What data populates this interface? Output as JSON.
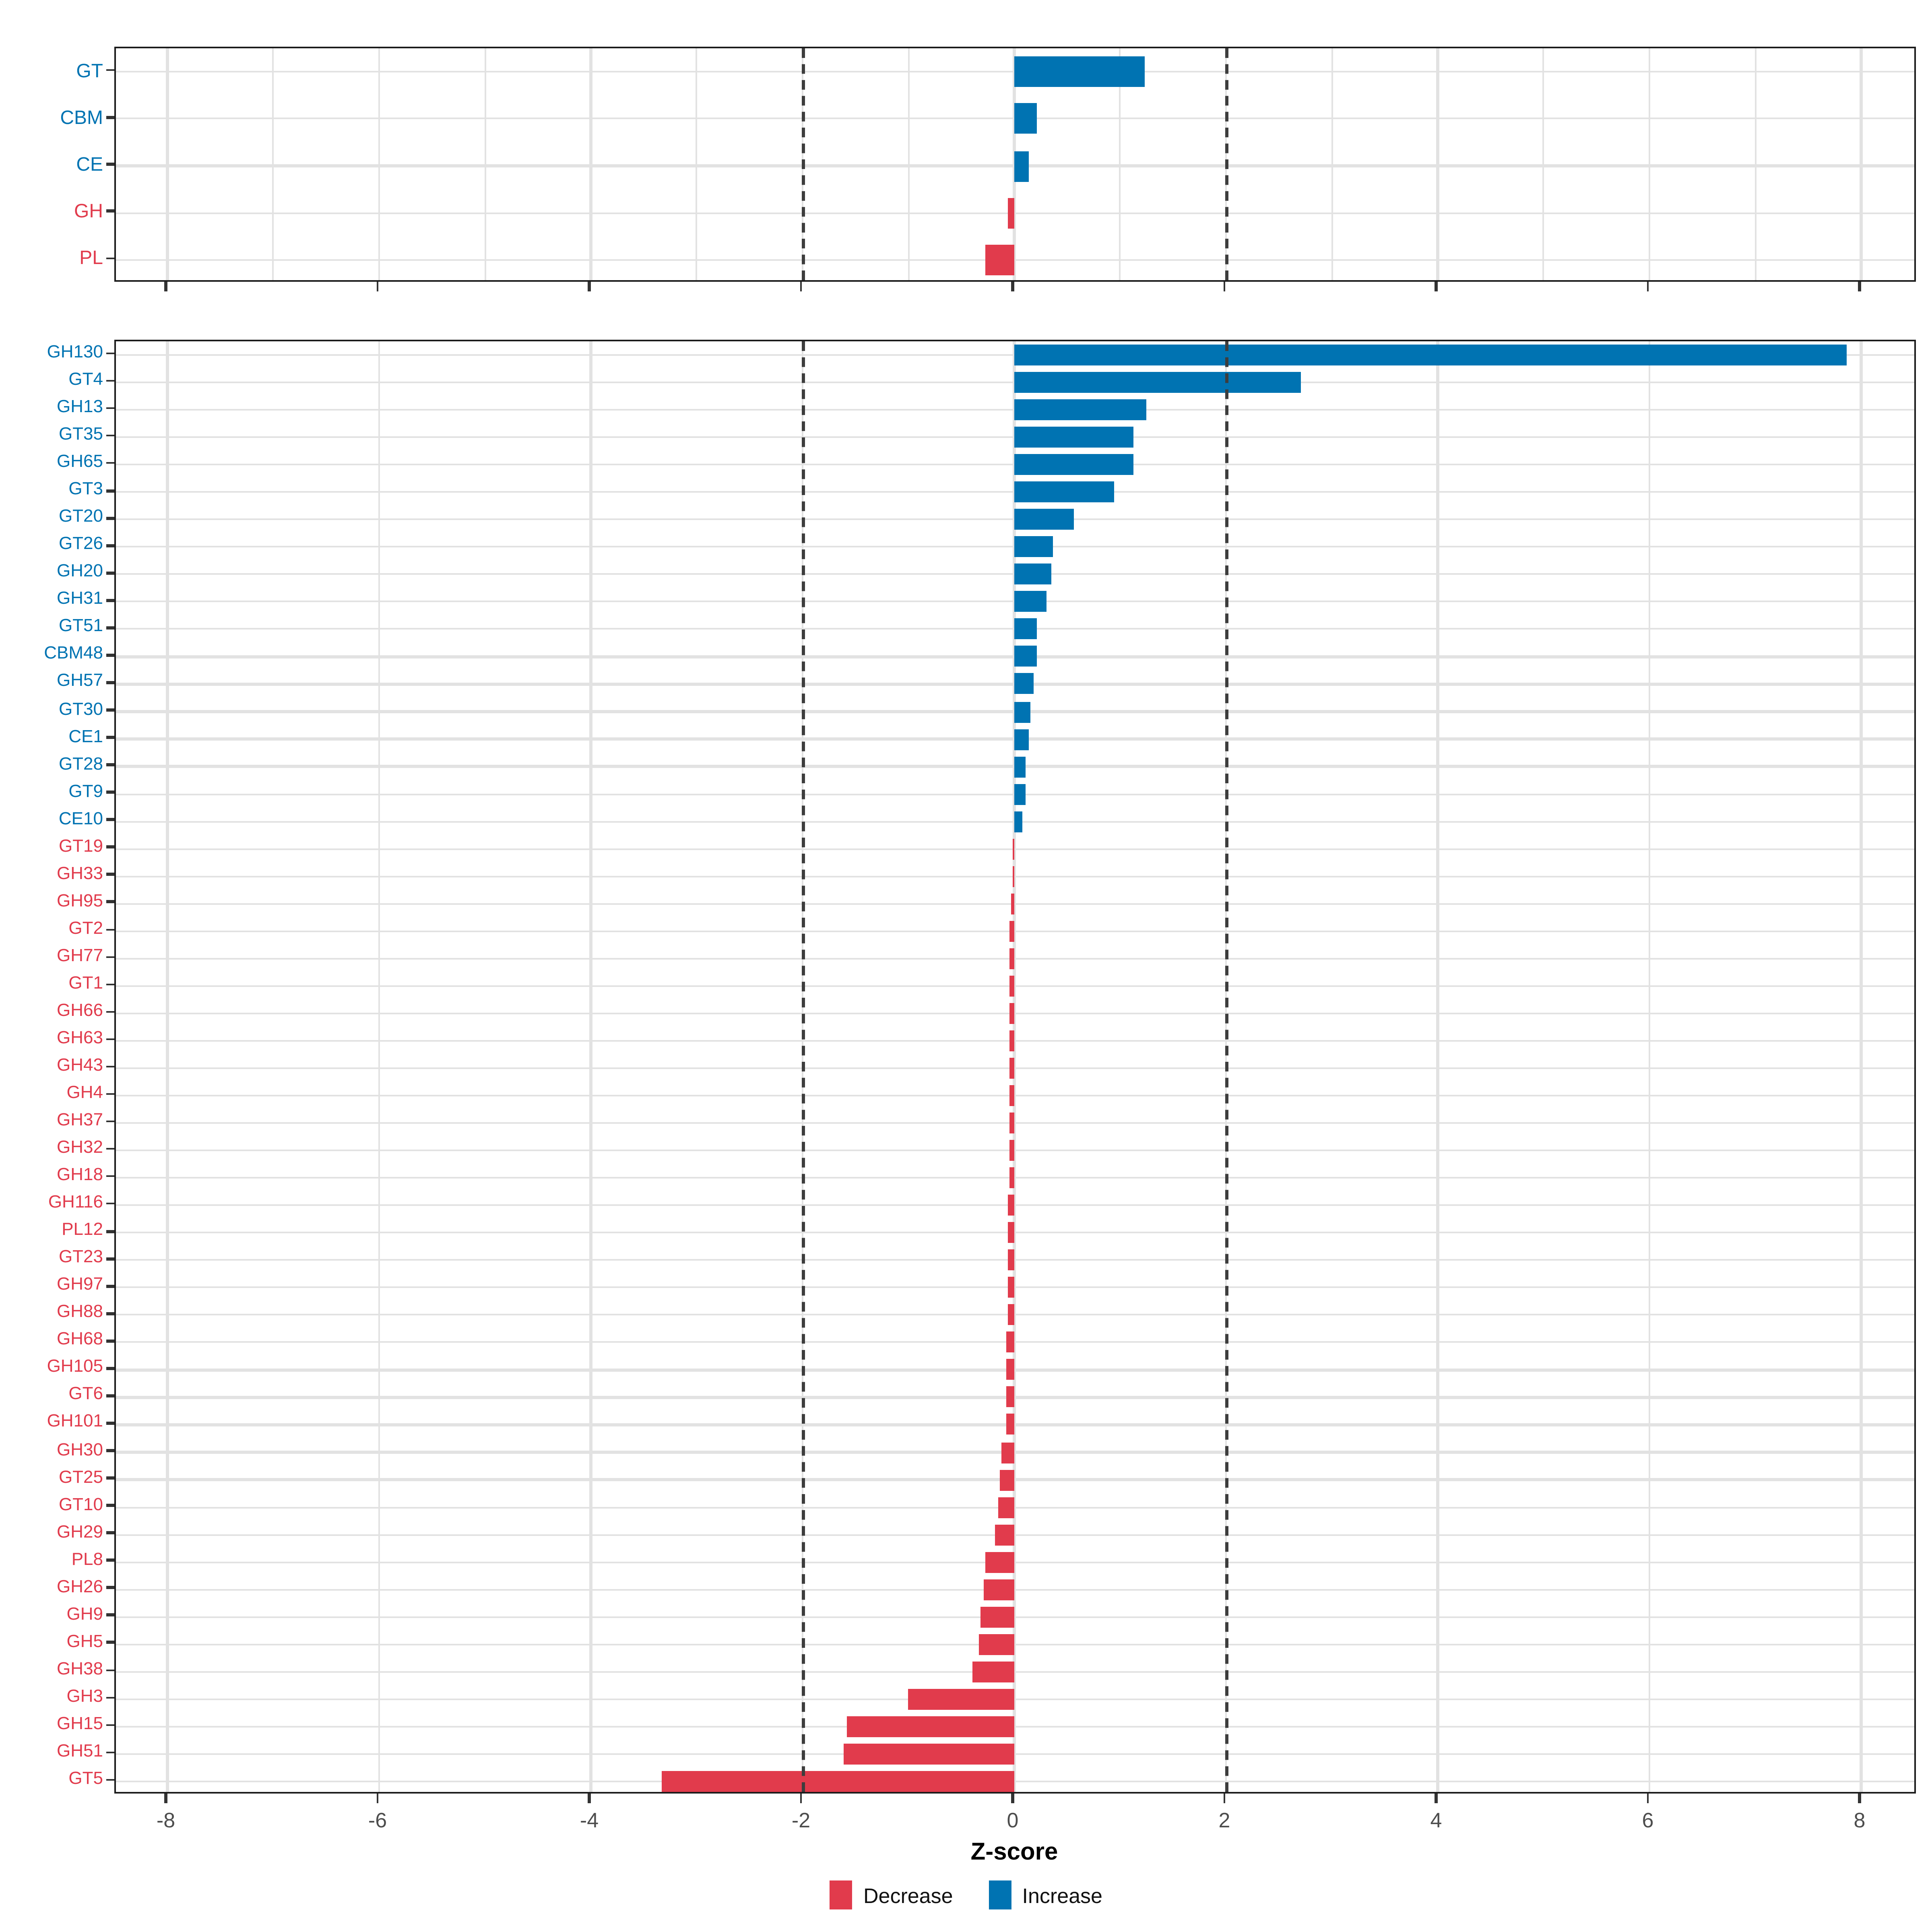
{
  "figure": {
    "xlabel": "Z-score",
    "legend": {
      "decrease_label": "Decrease",
      "increase_label": "Increase"
    },
    "colors": {
      "decrease": "#E13B4C",
      "increase": "#0073B2",
      "grid": "#E2E2E2",
      "dashed_line": "#3D3D3D",
      "axis_text": "#4D4D4D",
      "tick": "#333333",
      "panel_border": "#1C1C1C"
    }
  },
  "chart_data": [
    {
      "type": "bar",
      "orientation": "horizontal",
      "title": "",
      "panel": "class-summary",
      "categories": [
        "GT",
        "CBM",
        "CE",
        "GH",
        "PL"
      ],
      "values": [
        1.23,
        0.22,
        0.14,
        -0.06,
        -0.28
      ],
      "xlim": [
        -8.8,
        8.8
      ],
      "x_ticks": [
        -8,
        -6,
        -4,
        -2,
        0,
        2,
        4,
        6,
        8
      ],
      "gridline_step": 1,
      "vlines": [
        -2,
        2
      ],
      "grid": true
    },
    {
      "type": "bar",
      "orientation": "horizontal",
      "title": "",
      "panel": "family-detail",
      "xlabel": "Z-score",
      "categories": [
        "GH130",
        "GT4",
        "GH13",
        "GT35",
        "GH65",
        "GT3",
        "GT20",
        "GT26",
        "GH20",
        "GH31",
        "GT51",
        "CBM48",
        "GH57",
        "GT30",
        "CE1",
        "GT28",
        "GT9",
        "CE10",
        "GT19",
        "GH33",
        "GH95",
        "GT2",
        "GH77",
        "GT1",
        "GH66",
        "GH63",
        "GH43",
        "GH4",
        "GH37",
        "GH32",
        "GH18",
        "GH116",
        "PL12",
        "GT23",
        "GH97",
        "GH88",
        "GH68",
        "GH105",
        "GT6",
        "GH101",
        "GH30",
        "GT25",
        "GT10",
        "GH29",
        "PL8",
        "GH26",
        "GH9",
        "GH5",
        "GH38",
        "GH3",
        "GH15",
        "GH51",
        "GT5"
      ],
      "values": [
        7.87,
        2.7,
        1.24,
        1.13,
        1.12,
        0.94,
        0.56,
        0.36,
        0.35,
        0.31,
        0.22,
        0.21,
        0.18,
        0.15,
        0.14,
        0.11,
        0.1,
        0.07,
        -0.01,
        -0.02,
        -0.03,
        -0.04,
        -0.04,
        -0.05,
        -0.05,
        -0.05,
        -0.05,
        -0.05,
        -0.05,
        -0.05,
        -0.05,
        -0.06,
        -0.06,
        -0.06,
        -0.06,
        -0.06,
        -0.07,
        -0.07,
        -0.07,
        -0.08,
        -0.12,
        -0.14,
        -0.15,
        -0.19,
        -0.27,
        -0.29,
        -0.32,
        -0.33,
        -0.39,
        -1.0,
        -1.58,
        -1.61,
        -3.33
      ],
      "xlim": [
        -8.8,
        8.8
      ],
      "x_ticks": [
        -8,
        -6,
        -4,
        -2,
        0,
        2,
        4,
        6,
        8
      ],
      "x_tick_labels": [
        "-8",
        "-6",
        "-4",
        "-2",
        "0",
        "2",
        "4",
        "6",
        "8"
      ],
      "gridline_step": 2,
      "vlines": [
        -2,
        2
      ],
      "grid": true,
      "legend_position": "bottom",
      "series_colors_rule": "value >= 0 -> increase (blue), value < 0 -> decrease (red)"
    }
  ]
}
